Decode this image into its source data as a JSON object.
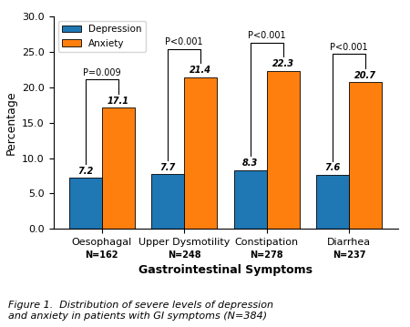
{
  "chart_data": {
    "type": "bar",
    "categories": [
      "Oesophagal",
      "Upper Dysmotility",
      "Constipation",
      "Diarrhea"
    ],
    "series": [
      {
        "name": "Depression",
        "values": [
          7.2,
          7.7,
          8.3,
          7.6
        ]
      },
      {
        "name": "Anxiety",
        "values": [
          17.1,
          21.4,
          22.3,
          20.7
        ]
      }
    ],
    "x_label": "Gastrointestinal Symptoms",
    "y_label": "Percentage",
    "ylim": [
      0,
      30
    ],
    "yticks": [
      {
        "value": 0,
        "label": "0.0"
      },
      {
        "value": 5,
        "label": "5.0"
      },
      {
        "value": 10,
        "label": "10.0"
      },
      {
        "value": 15,
        "label": "15.0"
      },
      {
        "value": 20,
        "label": "20.0"
      },
      {
        "value": 25,
        "label": "25.0"
      },
      {
        "value": 30,
        "label": "30.0"
      }
    ],
    "data_labels": true,
    "legend": "upper left",
    "p_values": [
      "P=0.009",
      "P<0.001",
      "P<0.001",
      "P<0.001"
    ],
    "n_labels": [
      "N=162",
      "N=248",
      "N=278",
      "N=237"
    ],
    "caption": "Figure 1.  Distribution of severe levels of depression\nand anxiety in patients with GI symptoms (N=384)"
  }
}
